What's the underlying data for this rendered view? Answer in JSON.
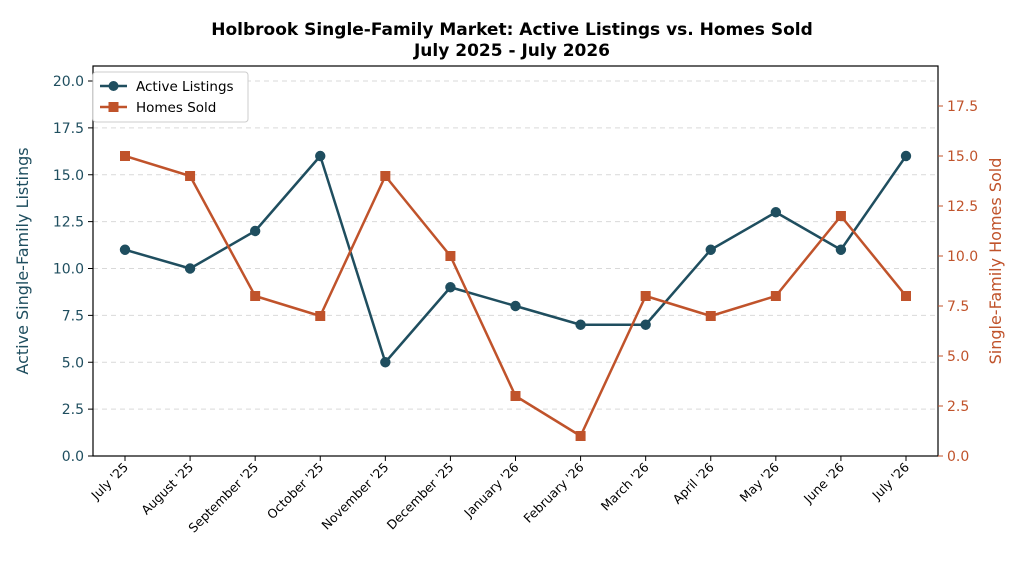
{
  "chart_data": {
    "type": "line",
    "title_lines": [
      "Holbrook Single-Family Market: Active Listings vs. Homes Sold",
      "July 2025 - July 2026"
    ],
    "categories": [
      "July '25",
      "August '25",
      "September '25",
      "October '25",
      "November '25",
      "December '25",
      "January '26",
      "February '26",
      "March '26",
      "April '26",
      "May '26",
      "June '26",
      "July '26"
    ],
    "series": [
      {
        "name": "Active Listings",
        "axis": "left",
        "marker": "circle",
        "color": "#1f4e5f",
        "values": [
          11,
          10,
          12,
          16,
          5,
          9,
          8,
          7,
          7,
          11,
          13,
          11,
          16
        ]
      },
      {
        "name": "Homes Sold",
        "axis": "right",
        "marker": "square",
        "color": "#c0532b",
        "values": [
          15,
          14,
          8,
          7,
          14,
          10,
          3,
          1,
          8,
          7,
          8,
          12,
          8
        ]
      }
    ],
    "left_axis": {
      "label": "Active Single-Family Listings",
      "ylim": [
        0,
        20.8
      ],
      "ticks": [
        "0.0",
        "2.5",
        "5.0",
        "7.5",
        "10.0",
        "12.5",
        "15.0",
        "17.5",
        "20.0"
      ],
      "color": "#1f4e5f"
    },
    "right_axis": {
      "label": "Single-Family Homes Sold",
      "ylim": [
        0,
        19.5
      ],
      "ticks": [
        "0.0",
        "2.5",
        "5.0",
        "7.5",
        "10.0",
        "12.5",
        "15.0",
        "17.5"
      ],
      "color": "#c0532b"
    },
    "grid": "horizontal dashed",
    "legend_position": "top-left"
  }
}
